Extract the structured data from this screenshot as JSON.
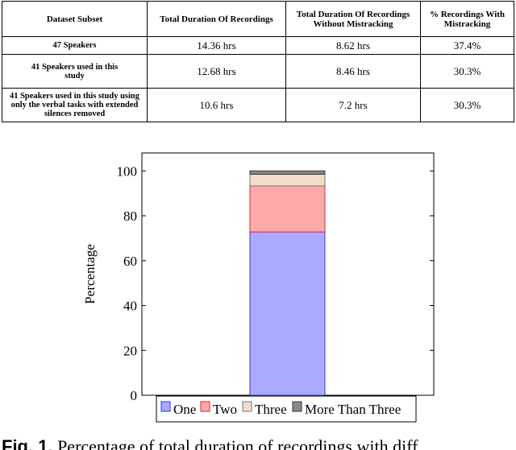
{
  "table": {
    "headers": [
      "Dataset Subset",
      "Total Duration Of Recordings",
      "Total Duration Of Recordings Without Mistracking",
      "% Recordings With Mistracking"
    ],
    "rows": [
      {
        "subset": "47 Speakers",
        "total": "14.36 hrs",
        "without": "8.62 hrs",
        "pct": "37.4%"
      },
      {
        "subset": "41 Speakers used in this study",
        "total": "12.68 hrs",
        "without": "8.46 hrs",
        "pct": "30.3%"
      },
      {
        "subset": "41 Speakers used in this study using only the verbal tasks with extended silences removed",
        "total": "10.6 hrs",
        "without": "7.2 hrs",
        "pct": "30.3%"
      }
    ]
  },
  "chart_data": {
    "type": "bar",
    "stacked": true,
    "categories": [
      ""
    ],
    "series": [
      {
        "name": "One",
        "values": [
          72.8
        ],
        "color": "#aaaaff",
        "stroke": "#3333ee"
      },
      {
        "name": "Two",
        "values": [
          20.5
        ],
        "color": "#ffaaaa",
        "stroke": "#ee2222"
      },
      {
        "name": "Three",
        "values": [
          5.2
        ],
        "color": "#f2dccb",
        "stroke": "#777777"
      },
      {
        "name": "More Than Three",
        "values": [
          1.5
        ],
        "color": "#888888",
        "stroke": "#333333"
      }
    ],
    "ylabel": "Percentage",
    "ylim": [
      0,
      108
    ],
    "yticks": [
      0,
      20,
      40,
      60,
      80,
      100
    ],
    "legend_position": "bottom",
    "grid": false
  },
  "caption": {
    "label": "Fig. 1.",
    "text": "Percentage of total duration of recordings with diff"
  }
}
